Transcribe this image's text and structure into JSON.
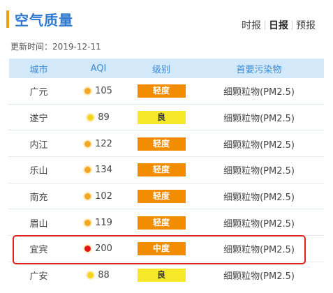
{
  "header": {
    "title": "空气质量"
  },
  "tabs": [
    {
      "label": "时报"
    },
    {
      "label": "日报"
    },
    {
      "label": "预报"
    }
  ],
  "update_time": "更新时间：2019-12-11",
  "table": {
    "columns": [
      "城市",
      "AQI",
      "级别",
      "首要污染物"
    ],
    "rows": [
      {
        "city": "广元",
        "aqi": "105",
        "level": "轻度",
        "pollutant": "细颗粒物(PM2.5)",
        "dot_color": "#f5a623",
        "badge_color": "#f28c00",
        "badge_text_color": "#ffffff"
      },
      {
        "city": "遂宁",
        "aqi": "89",
        "level": "良",
        "pollutant": "细颗粒物(PM2.5)",
        "dot_color": "#f7d51d",
        "badge_color": "#f5e92a",
        "badge_text_color": "#333333"
      },
      {
        "city": "内江",
        "aqi": "122",
        "level": "轻度",
        "pollutant": "细颗粒物(PM2.5)",
        "dot_color": "#f5a623",
        "badge_color": "#f28c00",
        "badge_text_color": "#ffffff"
      },
      {
        "city": "乐山",
        "aqi": "134",
        "level": "轻度",
        "pollutant": "细颗粒物(PM2.5)",
        "dot_color": "#f5a623",
        "badge_color": "#f28c00",
        "badge_text_color": "#ffffff"
      },
      {
        "city": "南充",
        "aqi": "102",
        "level": "轻度",
        "pollutant": "细颗粒物(PM2.5)",
        "dot_color": "#f5a623",
        "badge_color": "#f28c00",
        "badge_text_color": "#ffffff"
      },
      {
        "city": "眉山",
        "aqi": "119",
        "level": "轻度",
        "pollutant": "细颗粒物(PM2.5)",
        "dot_color": "#f5a623",
        "badge_color": "#f28c00",
        "badge_text_color": "#ffffff"
      },
      {
        "city": "宜宾",
        "aqi": "200",
        "level": "中度",
        "pollutant": "细颗粒物(PM2.5)",
        "dot_color": "#e3131b",
        "badge_color": "#f28c00",
        "badge_text_color": "#ffffff"
      },
      {
        "city": "广安",
        "aqi": "88",
        "level": "良",
        "pollutant": "细颗粒物(PM2.5)",
        "dot_color": "#f7d51d",
        "badge_color": "#f5e92a",
        "badge_text_color": "#333333"
      }
    ]
  },
  "highlight_color": "#e0231f"
}
